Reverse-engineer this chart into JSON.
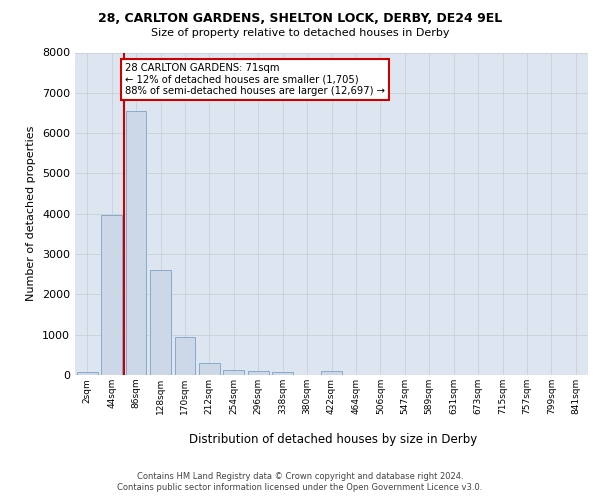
{
  "title_line1": "28, CARLTON GARDENS, SHELTON LOCK, DERBY, DE24 9EL",
  "title_line2": "Size of property relative to detached houses in Derby",
  "xlabel": "Distribution of detached houses by size in Derby",
  "ylabel": "Number of detached properties",
  "bar_labels": [
    "2sqm",
    "44sqm",
    "86sqm",
    "128sqm",
    "170sqm",
    "212sqm",
    "254sqm",
    "296sqm",
    "338sqm",
    "380sqm",
    "422sqm",
    "464sqm",
    "506sqm",
    "547sqm",
    "589sqm",
    "631sqm",
    "673sqm",
    "715sqm",
    "757sqm",
    "799sqm",
    "841sqm"
  ],
  "bar_values": [
    75,
    3980,
    6550,
    2600,
    950,
    310,
    120,
    100,
    80,
    0,
    100,
    0,
    0,
    0,
    0,
    0,
    0,
    0,
    0,
    0,
    0
  ],
  "bar_color": "#ccd8e8",
  "bar_edgecolor": "#88aac8",
  "annotation_text": "28 CARLTON GARDENS: 71sqm\n← 12% of detached houses are smaller (1,705)\n88% of semi-detached houses are larger (12,697) →",
  "annotation_box_facecolor": "#ffffff",
  "annotation_box_edgecolor": "#cc0000",
  "vline_color": "#cc0000",
  "vline_x": 1.5,
  "ylim": [
    0,
    8000
  ],
  "yticks": [
    0,
    1000,
    2000,
    3000,
    4000,
    5000,
    6000,
    7000,
    8000
  ],
  "grid_color": "#c8d0d8",
  "bg_color": "#dde6f0",
  "footer_line1": "Contains HM Land Registry data © Crown copyright and database right 2024.",
  "footer_line2": "Contains public sector information licensed under the Open Government Licence v3.0."
}
